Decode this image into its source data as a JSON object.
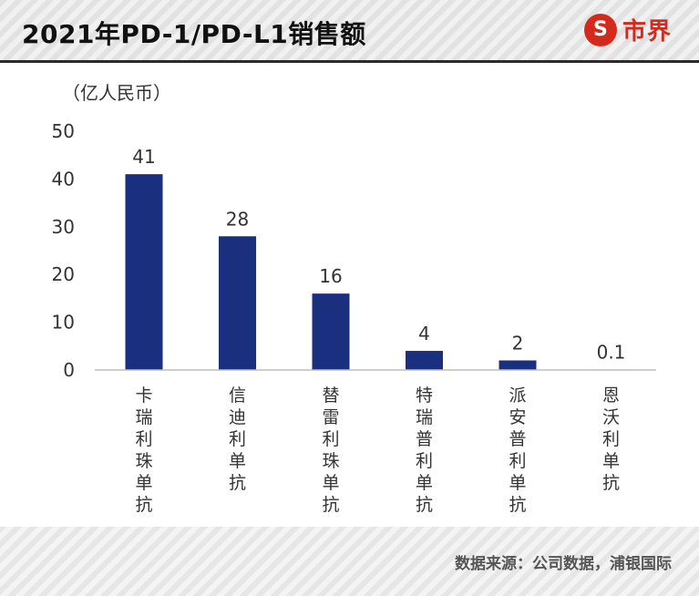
{
  "header": {
    "title": "2021年PD-1/PD-L1销售额",
    "logo_mark": "S",
    "logo_text": "市界",
    "accent_color": "#d42a1e"
  },
  "chart_data": {
    "type": "bar",
    "unit_label": "（亿人民币）",
    "categories": [
      "卡瑞利珠单抗",
      "信迪利单抗",
      "替雷利珠单抗",
      "特瑞普利单抗",
      "派安普利单抗",
      "恩沃利单抗"
    ],
    "values": [
      41,
      28,
      16,
      4,
      2,
      0.1
    ],
    "data_labels": [
      "41",
      "28",
      "16",
      "4",
      "2",
      "0.1"
    ],
    "yticks": [
      0,
      10,
      20,
      30,
      40,
      50
    ],
    "ylim": [
      0,
      50
    ],
    "bar_color": "#1a2f7e",
    "grid": false
  },
  "footer": {
    "source": "数据来源：公司数据，浦银国际"
  }
}
